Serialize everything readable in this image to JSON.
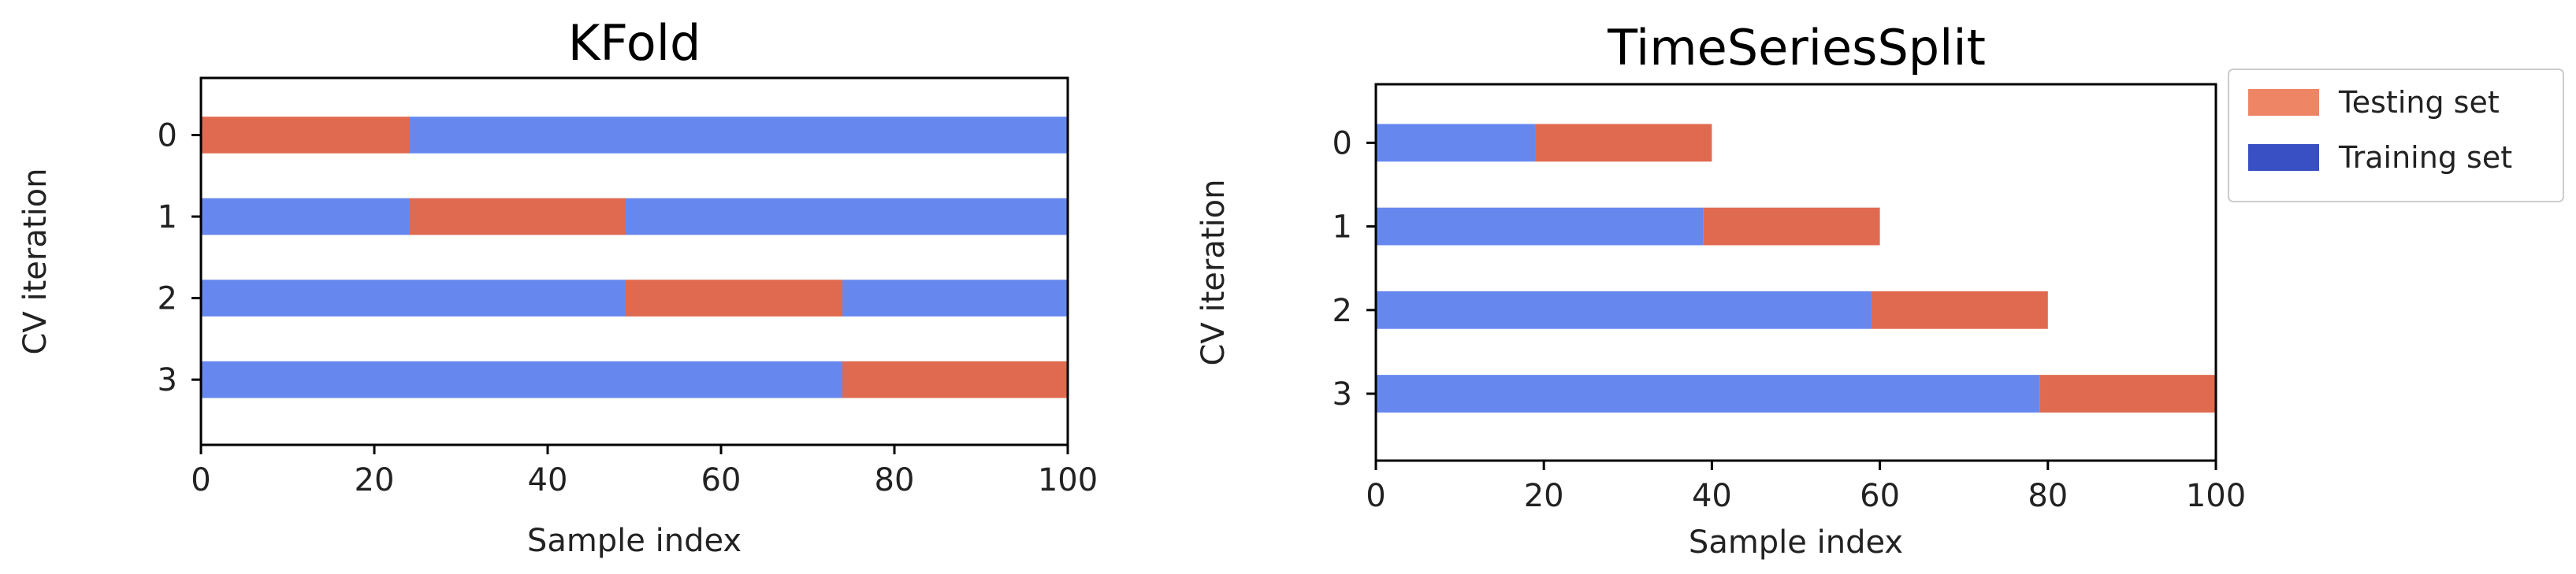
{
  "colors": {
    "training": "#6688ee",
    "testing": "#e06a50",
    "legend_training": "#3850c4",
    "legend_testing": "#ee8666",
    "axes": "#000000",
    "background": "#ffffff"
  },
  "legend": {
    "placement": "upper-right, outside second plot",
    "testing_label": "Testing set",
    "training_label": "Training set"
  },
  "chart_data": [
    {
      "type": "bar",
      "orientation": "horizontal",
      "title": "KFold",
      "xlabel": "Sample index",
      "ylabel": "CV iteration",
      "xlim": [
        0,
        100
      ],
      "ylim": [
        3.8,
        -0.7
      ],
      "x_ticks": [
        0,
        20,
        40,
        60,
        80,
        100
      ],
      "y_ticks": [
        0,
        1,
        2,
        3
      ],
      "x_tick_labels": [
        "0",
        "20",
        "40",
        "60",
        "80",
        "100"
      ],
      "y_tick_labels": [
        "0",
        "1",
        "2",
        "3"
      ],
      "grid": false,
      "rows": [
        {
          "iteration": 0,
          "segments": [
            {
              "set": "testing",
              "start": 0,
              "end": 24
            },
            {
              "set": "training",
              "start": 24,
              "end": 100
            }
          ]
        },
        {
          "iteration": 1,
          "segments": [
            {
              "set": "training",
              "start": 0,
              "end": 24
            },
            {
              "set": "testing",
              "start": 24,
              "end": 49
            },
            {
              "set": "training",
              "start": 49,
              "end": 100
            }
          ]
        },
        {
          "iteration": 2,
          "segments": [
            {
              "set": "training",
              "start": 0,
              "end": 49
            },
            {
              "set": "testing",
              "start": 49,
              "end": 74
            },
            {
              "set": "training",
              "start": 74,
              "end": 100
            }
          ]
        },
        {
          "iteration": 3,
          "segments": [
            {
              "set": "training",
              "start": 0,
              "end": 74
            },
            {
              "set": "testing",
              "start": 74,
              "end": 100
            }
          ]
        }
      ]
    },
    {
      "type": "bar",
      "orientation": "horizontal",
      "title": "TimeSeriesSplit",
      "xlabel": "Sample index",
      "ylabel": "CV iteration",
      "xlim": [
        0,
        100
      ],
      "ylim": [
        3.8,
        -0.7
      ],
      "x_ticks": [
        0,
        20,
        40,
        60,
        80,
        100
      ],
      "y_ticks": [
        0,
        1,
        2,
        3
      ],
      "x_tick_labels": [
        "0",
        "20",
        "40",
        "60",
        "80",
        "100"
      ],
      "y_tick_labels": [
        "0",
        "1",
        "2",
        "3"
      ],
      "grid": false,
      "rows": [
        {
          "iteration": 0,
          "segments": [
            {
              "set": "training",
              "start": 0,
              "end": 19
            },
            {
              "set": "testing",
              "start": 19,
              "end": 40
            }
          ]
        },
        {
          "iteration": 1,
          "segments": [
            {
              "set": "training",
              "start": 0,
              "end": 39
            },
            {
              "set": "testing",
              "start": 39,
              "end": 60
            }
          ]
        },
        {
          "iteration": 2,
          "segments": [
            {
              "set": "training",
              "start": 0,
              "end": 59
            },
            {
              "set": "testing",
              "start": 59,
              "end": 80
            }
          ]
        },
        {
          "iteration": 3,
          "segments": [
            {
              "set": "training",
              "start": 0,
              "end": 79
            },
            {
              "set": "testing",
              "start": 79,
              "end": 100
            }
          ]
        }
      ]
    }
  ]
}
